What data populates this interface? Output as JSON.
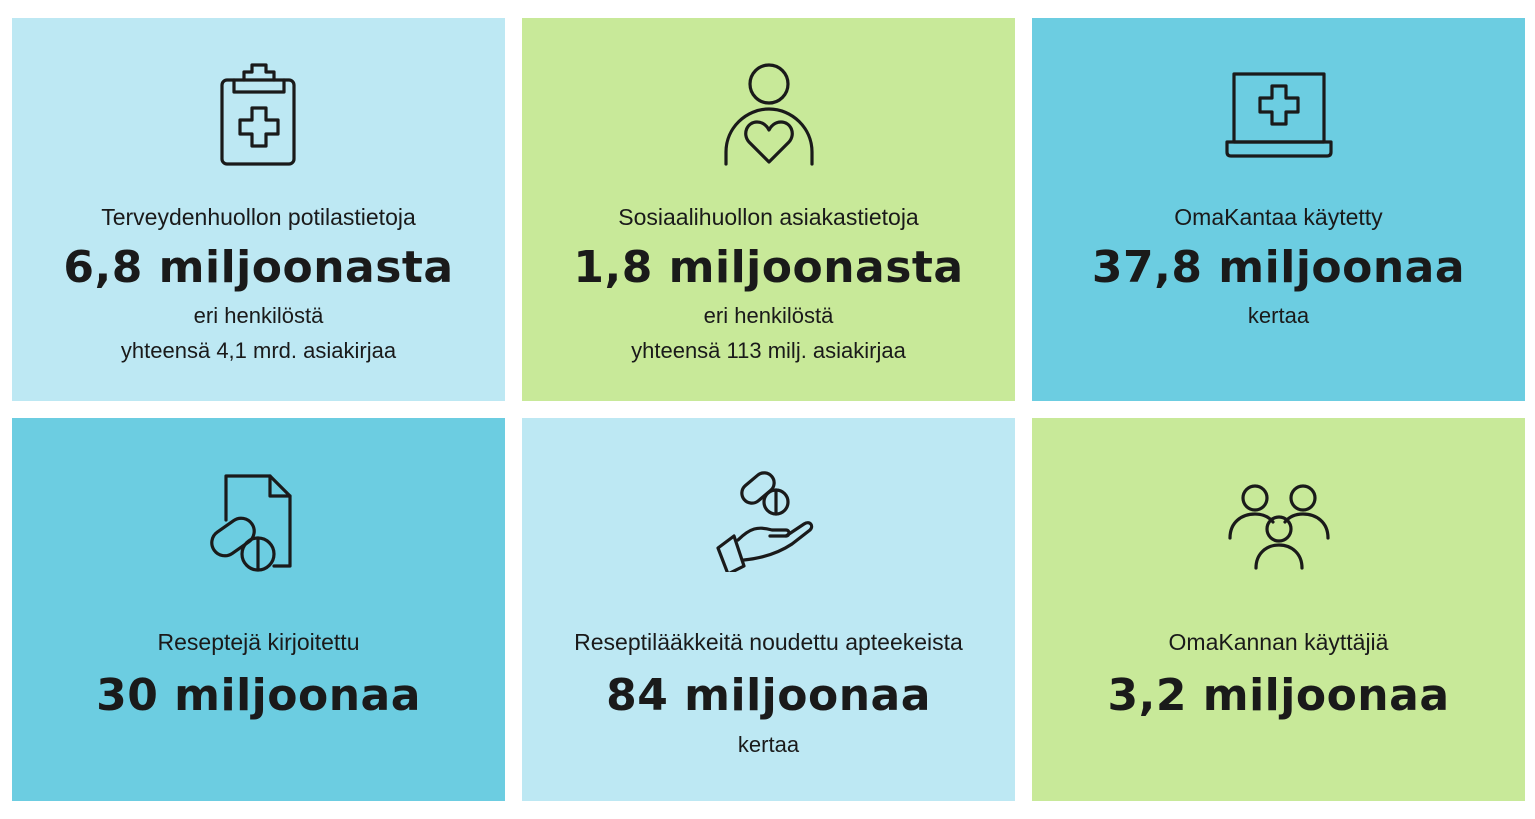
{
  "colors": {
    "light_blue": "#bde8f3",
    "green": "#c8e999",
    "teal": "#6ccde1",
    "text": "#1a1a1a"
  },
  "tiles": [
    {
      "icon": "clipboard-medical-icon",
      "label": "Terveydenhuollon potilastietoja",
      "big": "6,8 miljoonasta",
      "sub1": "eri henkilöstä",
      "sub2": "yhteensä 4,1 mrd. asiakirjaa"
    },
    {
      "icon": "person-heart-icon",
      "label": "Sosiaalihuollon asiakastietoja",
      "big": "1,8 miljoonasta",
      "sub1": "eri henkilöstä",
      "sub2": "yhteensä 113 milj. asiakirjaa"
    },
    {
      "icon": "laptop-medical-icon",
      "label": "OmaKantaa käytetty",
      "big": "37,8 miljoonaa",
      "sub1": "kertaa"
    },
    {
      "icon": "prescription-document-pills-icon",
      "label": "Reseptejä kirjoitettu",
      "big": "30 miljoonaa"
    },
    {
      "icon": "hand-pills-icon",
      "label": "Reseptilääkkeitä noudettu apteekeista",
      "big": "84 miljoonaa",
      "sub1": "kertaa"
    },
    {
      "icon": "users-group-icon",
      "label": "OmaKannan käyttäjiä",
      "big": "3,2 miljoonaa"
    }
  ]
}
